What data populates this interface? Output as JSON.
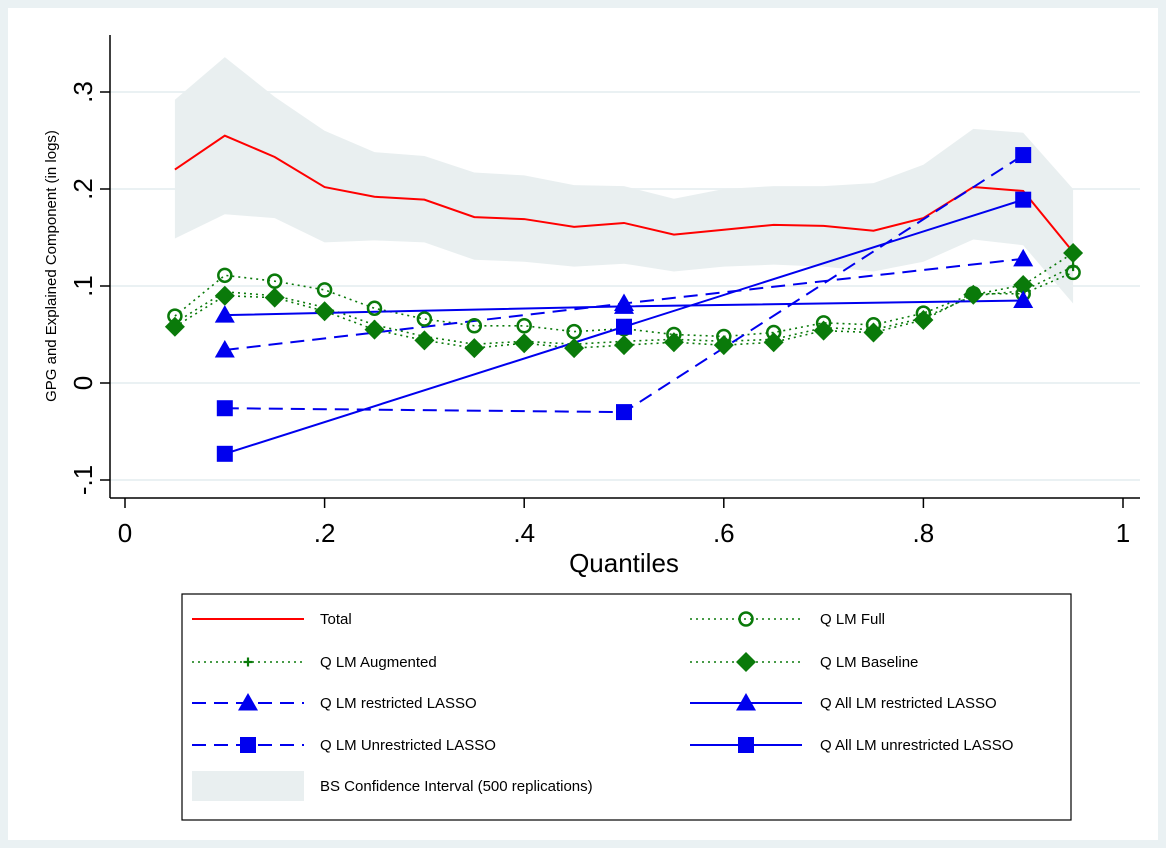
{
  "chart_data": {
    "type": "line",
    "title": "",
    "xlabel": "Quantiles",
    "ylabel": "GPG and Explained Component (in logs)",
    "xlim": [
      0,
      1
    ],
    "ylim": [
      -0.11,
      0.355
    ],
    "x_ticks": [
      0,
      0.2,
      0.4,
      0.6,
      0.8,
      1
    ],
    "x_tick_labels": [
      "0",
      ".2",
      ".4",
      ".6",
      ".8",
      "1"
    ],
    "y_ticks": [
      -0.1,
      0,
      0.1,
      0.2,
      0.3
    ],
    "y_tick_labels": [
      "-.1",
      "0",
      ".1",
      ".2",
      ".3"
    ],
    "grid": "horizontal",
    "legend_placement": "bottom",
    "colors": {
      "total": "#ff0000",
      "green": "#0a7a0a",
      "blue": "#0000ee",
      "ci_band": "#e9eff0",
      "outer_bg": "#eaf1f3",
      "plot_bg": "#ffffff"
    },
    "confidence_band": {
      "name": "BS Confidence Interval (500 replications)",
      "x": [
        0.05,
        0.1,
        0.15,
        0.2,
        0.25,
        0.3,
        0.35,
        0.4,
        0.45,
        0.5,
        0.55,
        0.6,
        0.65,
        0.7,
        0.75,
        0.8,
        0.85,
        0.9,
        0.95
      ],
      "lower": [
        0.149,
        0.174,
        0.17,
        0.145,
        0.147,
        0.145,
        0.127,
        0.125,
        0.12,
        0.123,
        0.115,
        0.12,
        0.122,
        0.12,
        0.115,
        0.125,
        0.148,
        0.142,
        0.082
      ],
      "upper": [
        0.292,
        0.336,
        0.295,
        0.26,
        0.238,
        0.234,
        0.217,
        0.214,
        0.204,
        0.203,
        0.19,
        0.2,
        0.203,
        0.203,
        0.206,
        0.225,
        0.262,
        0.258,
        0.2
      ]
    },
    "series": [
      {
        "name": "Total",
        "style": "solid",
        "marker": "none",
        "color": "#ff0000",
        "x": [
          0.05,
          0.1,
          0.15,
          0.2,
          0.25,
          0.3,
          0.35,
          0.4,
          0.45,
          0.5,
          0.55,
          0.6,
          0.65,
          0.7,
          0.75,
          0.8,
          0.85,
          0.9,
          0.95
        ],
        "y": [
          0.22,
          0.255,
          0.233,
          0.202,
          0.192,
          0.189,
          0.171,
          0.169,
          0.161,
          0.165,
          0.153,
          0.158,
          0.163,
          0.162,
          0.157,
          0.17,
          0.202,
          0.198,
          0.135
        ]
      },
      {
        "name": "Q LM Augmented",
        "style": "dotted",
        "marker": "plus",
        "color": "#0a7a0a",
        "x": [
          0.05,
          0.1,
          0.15,
          0.2,
          0.25,
          0.3,
          0.35,
          0.4,
          0.45,
          0.5,
          0.55,
          0.6,
          0.65,
          0.7,
          0.75,
          0.8,
          0.85,
          0.9,
          0.95
        ],
        "y": [
          0.062,
          0.094,
          0.09,
          0.078,
          0.06,
          0.048,
          0.04,
          0.043,
          0.04,
          0.043,
          0.045,
          0.043,
          0.045,
          0.057,
          0.055,
          0.067,
          0.09,
          0.095,
          0.12
        ]
      },
      {
        "name": "Q LM Full",
        "style": "dotted",
        "marker": "hollow-circle",
        "color": "#0a7a0a",
        "x": [
          0.05,
          0.1,
          0.15,
          0.2,
          0.25,
          0.3,
          0.35,
          0.4,
          0.45,
          0.5,
          0.55,
          0.6,
          0.65,
          0.7,
          0.75,
          0.8,
          0.85,
          0.9,
          0.95
        ],
        "y": [
          0.069,
          0.111,
          0.105,
          0.096,
          0.077,
          0.066,
          0.059,
          0.059,
          0.053,
          0.056,
          0.05,
          0.048,
          0.052,
          0.062,
          0.06,
          0.072,
          0.092,
          0.092,
          0.114
        ]
      },
      {
        "name": "Q LM Baseline",
        "style": "dotted",
        "marker": "diamond",
        "color": "#0a7a0a",
        "x": [
          0.05,
          0.1,
          0.15,
          0.2,
          0.25,
          0.3,
          0.35,
          0.4,
          0.45,
          0.5,
          0.55,
          0.6,
          0.65,
          0.7,
          0.75,
          0.8,
          0.85,
          0.9,
          0.95
        ],
        "y": [
          0.058,
          0.09,
          0.088,
          0.074,
          0.055,
          0.044,
          0.036,
          0.041,
          0.036,
          0.039,
          0.042,
          0.039,
          0.042,
          0.054,
          0.052,
          0.065,
          0.091,
          0.101,
          0.134
        ]
      },
      {
        "name": "Q LM restricted LASSO",
        "style": "dashed",
        "marker": "triangle",
        "color": "#0000ee",
        "x": [
          0.1,
          0.5,
          0.9
        ],
        "y": [
          0.034,
          0.082,
          0.128
        ]
      },
      {
        "name": "Q  All LM restricted LASSO",
        "style": "solid",
        "marker": "triangle",
        "color": "#0000ee",
        "x": [
          0.1,
          0.5,
          0.9
        ],
        "y": [
          0.07,
          0.079,
          0.085
        ]
      },
      {
        "name": "Q LM Unrestricted LASSO",
        "style": "dashed",
        "marker": "square",
        "color": "#0000ee",
        "x": [
          0.1,
          0.5,
          0.9
        ],
        "y": [
          -0.026,
          -0.03,
          0.235
        ]
      },
      {
        "name": "Q All LM unrestricted LASSO",
        "style": "solid",
        "marker": "square",
        "color": "#0000ee",
        "x": [
          0.1,
          0.5,
          0.9
        ],
        "y": [
          -0.073,
          0.058,
          0.189
        ]
      }
    ],
    "legend": [
      {
        "label": "Total",
        "key": "Total"
      },
      {
        "label": "Q LM Full",
        "key": "Q LM Full"
      },
      {
        "label": "Q LM Augmented",
        "key": "Q LM Augmented"
      },
      {
        "label": "Q LM Baseline",
        "key": "Q LM Baseline"
      },
      {
        "label": "Q LM restricted LASSO",
        "key": "Q LM restricted LASSO"
      },
      {
        "label": "Q  All LM restricted LASSO",
        "key": "Q  All LM restricted LASSO"
      },
      {
        "label": "Q LM Unrestricted LASSO",
        "key": "Q LM Unrestricted LASSO"
      },
      {
        "label": "Q All LM unrestricted LASSO",
        "key": "Q All LM unrestricted LASSO"
      },
      {
        "label": "BS Confidence Interval (500 replications)",
        "key": "band"
      }
    ]
  }
}
